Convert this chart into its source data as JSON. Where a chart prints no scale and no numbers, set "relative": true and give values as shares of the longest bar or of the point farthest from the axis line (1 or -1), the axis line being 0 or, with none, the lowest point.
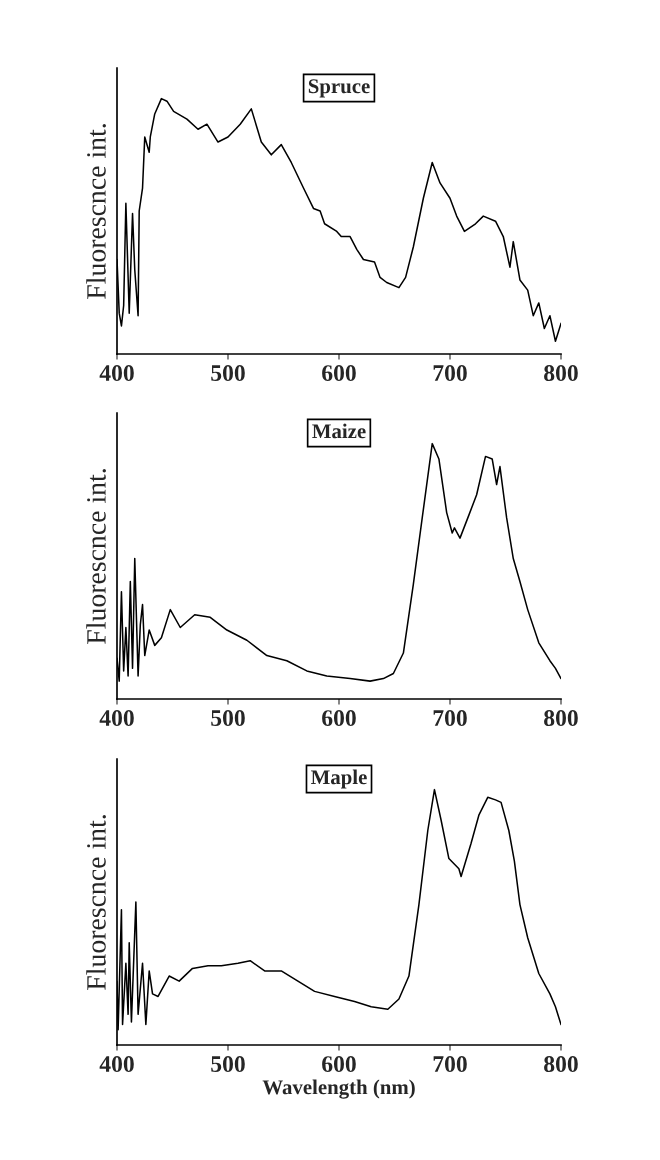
{
  "chart_data": [
    {
      "type": "line",
      "title": "Spruce",
      "ylabel": "Fluorescnce int.",
      "relative": true,
      "xlim": [
        400,
        800
      ],
      "xticks": [
        400,
        500,
        600,
        700,
        800
      ],
      "tick_labels": "x",
      "grid": false,
      "legend": false,
      "series": [
        {
          "color": "#000000",
          "x": [
            400,
            402,
            404,
            406,
            408,
            411,
            414,
            416,
            419,
            420,
            423,
            425,
            429,
            430,
            434,
            440,
            445,
            451,
            463,
            473,
            481,
            491,
            500,
            511,
            521,
            530,
            539,
            548,
            557,
            568,
            577,
            583,
            587,
            598,
            602,
            610,
            616,
            622,
            632,
            637,
            643,
            654,
            660,
            667,
            676,
            684,
            691,
            700,
            706,
            713,
            723,
            730,
            741,
            748,
            754,
            757,
            763,
            770,
            775,
            780,
            785,
            790,
            795,
            800
          ],
          "values": [
            0.37,
            0.16,
            0.11,
            0.19,
            0.59,
            0.16,
            0.55,
            0.33,
            0.15,
            0.56,
            0.65,
            0.85,
            0.79,
            0.85,
            0.94,
            1.0,
            0.99,
            0.95,
            0.92,
            0.88,
            0.9,
            0.83,
            0.85,
            0.9,
            0.96,
            0.83,
            0.78,
            0.82,
            0.75,
            0.65,
            0.57,
            0.56,
            0.51,
            0.48,
            0.46,
            0.46,
            0.41,
            0.37,
            0.36,
            0.3,
            0.28,
            0.26,
            0.3,
            0.42,
            0.61,
            0.75,
            0.67,
            0.61,
            0.54,
            0.48,
            0.51,
            0.54,
            0.52,
            0.46,
            0.34,
            0.44,
            0.29,
            0.25,
            0.15,
            0.2,
            0.1,
            0.15,
            0.05,
            0.12
          ]
        }
      ]
    },
    {
      "type": "line",
      "title": "Maize",
      "ylabel": "Fluorescnce int.",
      "relative": true,
      "xlim": [
        400,
        800
      ],
      "xticks": [
        400,
        500,
        600,
        700,
        800
      ],
      "tick_labels": "x",
      "grid": false,
      "legend": false,
      "series": [
        {
          "color": "#000000",
          "x": [
            400,
            402,
            404,
            406,
            408,
            410,
            412,
            414,
            416,
            419,
            421,
            423,
            425,
            429,
            434,
            440,
            448,
            457,
            470,
            484,
            499,
            517,
            535,
            553,
            571,
            589,
            610,
            628,
            640,
            649,
            658,
            667,
            675,
            684,
            690,
            697,
            702,
            704,
            709,
            717,
            724,
            732,
            738,
            742,
            745,
            751,
            757,
            763,
            770,
            780,
            790,
            795,
            800
          ],
          "values": [
            0.16,
            0.07,
            0.42,
            0.11,
            0.28,
            0.09,
            0.46,
            0.12,
            0.55,
            0.09,
            0.29,
            0.37,
            0.17,
            0.27,
            0.21,
            0.24,
            0.35,
            0.28,
            0.33,
            0.32,
            0.27,
            0.23,
            0.17,
            0.15,
            0.11,
            0.09,
            0.08,
            0.07,
            0.08,
            0.1,
            0.18,
            0.45,
            0.71,
            1.0,
            0.94,
            0.73,
            0.65,
            0.67,
            0.63,
            0.72,
            0.8,
            0.95,
            0.94,
            0.84,
            0.91,
            0.71,
            0.55,
            0.46,
            0.35,
            0.22,
            0.15,
            0.12,
            0.08
          ]
        }
      ]
    },
    {
      "type": "line",
      "title": "Maple",
      "ylabel": "Fluorescnce int.",
      "xlabel": "Wavelength (nm)",
      "relative": true,
      "xlim": [
        400,
        800
      ],
      "xticks": [
        400,
        500,
        600,
        700,
        800
      ],
      "tick_labels": "x",
      "grid": false,
      "legend": false,
      "series": [
        {
          "color": "#000000",
          "x": [
            400,
            401,
            404,
            405,
            408,
            410,
            411,
            413,
            417,
            419,
            423,
            426,
            429,
            432,
            437,
            447,
            456,
            468,
            482,
            494,
            509,
            520,
            533,
            548,
            563,
            578,
            596,
            614,
            629,
            644,
            654,
            663,
            672,
            680,
            686,
            692,
            699,
            708,
            710,
            719,
            726,
            734,
            741,
            746,
            753,
            758,
            763,
            770,
            780,
            790,
            795,
            800
          ],
          "values": [
            0.25,
            0.06,
            0.53,
            0.08,
            0.32,
            0.12,
            0.4,
            0.09,
            0.56,
            0.12,
            0.32,
            0.08,
            0.29,
            0.2,
            0.19,
            0.27,
            0.25,
            0.3,
            0.31,
            0.31,
            0.32,
            0.33,
            0.29,
            0.29,
            0.25,
            0.21,
            0.19,
            0.17,
            0.15,
            0.14,
            0.18,
            0.27,
            0.55,
            0.84,
            1.0,
            0.88,
            0.73,
            0.69,
            0.66,
            0.79,
            0.9,
            0.97,
            0.96,
            0.95,
            0.84,
            0.72,
            0.55,
            0.42,
            0.28,
            0.2,
            0.15,
            0.08
          ]
        }
      ]
    }
  ]
}
